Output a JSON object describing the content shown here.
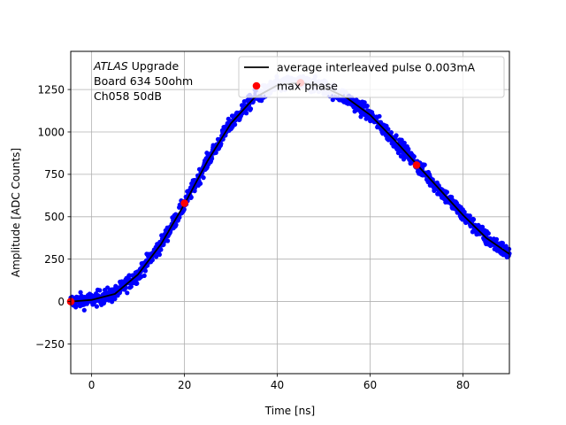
{
  "chart_data": {
    "type": "scatter",
    "title": "",
    "xlabel": "Time [ns]",
    "ylabel": "Amplitude [ADC Counts]",
    "xlim": [
      -4.5,
      90
    ],
    "ylim": [
      -425,
      1475
    ],
    "grid": true,
    "x_ticks": [
      0,
      20,
      40,
      60,
      80
    ],
    "y_ticks": [
      -250,
      0,
      250,
      500,
      750,
      1000,
      1250
    ],
    "x_tick_labels": [
      "0",
      "20",
      "40",
      "60",
      "80"
    ],
    "y_tick_labels": [
      "−250",
      "0",
      "250",
      "500",
      "750",
      "1000",
      "1250"
    ],
    "annotation": {
      "italic": "ATLAS",
      "line1_rest": " Upgrade",
      "line2": " Board 634 50ohm",
      "line3": " Ch058 50dB"
    },
    "legend": {
      "placement": "top-right",
      "entries": [
        "average interleaved pulse 0.003mA",
        "max phase"
      ]
    },
    "series": [
      {
        "name": "average interleaved pulse 0.003mA",
        "kind": "line",
        "color": "#000000",
        "x": [
          -4.5,
          0,
          5,
          10,
          15,
          20,
          25,
          30,
          35,
          40,
          45,
          50,
          55,
          60,
          65,
          70,
          75,
          80,
          85,
          90
        ],
        "y": [
          0,
          10,
          45,
          160,
          340,
          575,
          830,
          1050,
          1200,
          1275,
          1290,
          1265,
          1200,
          1100,
          960,
          810,
          660,
          510,
          375,
          280
        ]
      },
      {
        "name": "max phase",
        "kind": "points",
        "color": "#ff0000",
        "x": [
          -4.5,
          20,
          45,
          70
        ],
        "y": [
          0,
          580,
          1290,
          805
        ]
      }
    ],
    "samples_color": "#0000ff",
    "samples_sparse_color": "#c8c8ff"
  }
}
